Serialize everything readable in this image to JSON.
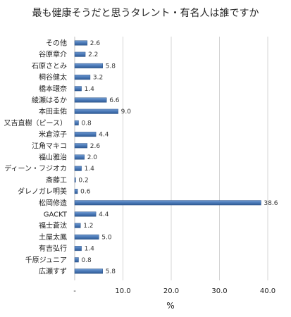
{
  "chart_data": {
    "type": "bar",
    "orientation": "horizontal",
    "title": "最も健康そうだと思うタレント・有名人は誰ですか",
    "xlabel": "%",
    "ylabel": "",
    "xlim": [
      0,
      40
    ],
    "xticks": [
      "-",
      "10.0",
      "20.0",
      "30.0",
      "40.0"
    ],
    "xtick_values": [
      0,
      10,
      20,
      30,
      40
    ],
    "grid": "vertical",
    "bar_color": "#4a79b7",
    "categories": [
      "その他",
      "谷原章介",
      "石原さとみ",
      "桐谷健太",
      "橋本環奈",
      "綾瀬はるか",
      "本田圭佑",
      "又吉直樹（ピース）",
      "米倉涼子",
      "江角マキコ",
      "福山雅治",
      "ディーン・フジオカ",
      "斎藤工",
      "ダレノガレ明美",
      "松岡修造",
      "GACKT",
      "福士蒼汰",
      "土屋太鳳",
      "有吉弘行",
      "千原ジュニア",
      "広瀬すず"
    ],
    "values": [
      2.6,
      2.2,
      5.8,
      3.2,
      1.4,
      6.6,
      9.0,
      0.8,
      4.4,
      2.6,
      2.0,
      1.4,
      0.2,
      0.6,
      38.6,
      4.4,
      1.2,
      5.0,
      1.4,
      0.8,
      5.8
    ],
    "value_labels": [
      "2.6",
      "2.2",
      "5.8",
      "3.2",
      "1.4",
      "6.6",
      "9.0",
      "0.8",
      "4.4",
      "2.6",
      "2.0",
      "1.4",
      "0.2",
      "0.6",
      "38.6",
      "4.4",
      "1.2",
      "5.0",
      "1.4",
      "0.8",
      "5.8"
    ]
  }
}
